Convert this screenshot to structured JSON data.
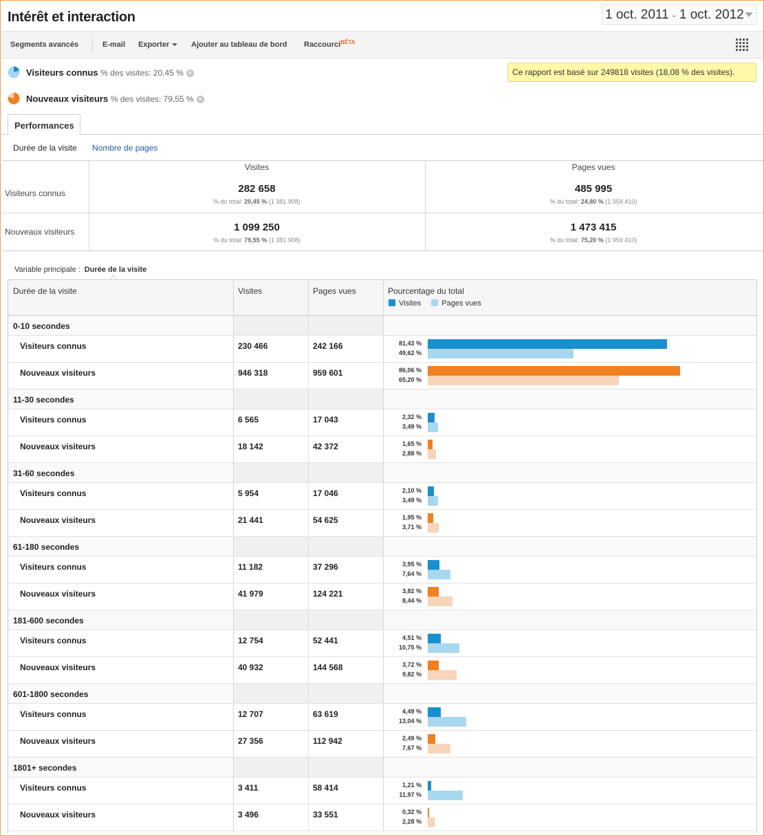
{
  "header": {
    "title": "Intérêt et interaction",
    "date_start": "1 oct. 2011",
    "date_sep": "-",
    "date_end": "1 oct. 2012"
  },
  "toolbar": {
    "segments": "Segments avancés",
    "email": "E-mail",
    "export": "Exporter",
    "dashboard": "Ajouter au tableau de bord",
    "shortcut": "Raccourci",
    "beta": "BÊTA"
  },
  "segments": [
    {
      "name": "Visiteurs connus",
      "sub": "% des visites: 20,45 %",
      "share": 0.2045,
      "color": "#1a8fd0"
    },
    {
      "name": "Nouveaux visiteurs",
      "sub": "% des visites: 79,55 %",
      "share": 0.7955,
      "color": "#f08020"
    }
  ],
  "note": "Ce rapport est basé sur 249818 visites (18,08 % des visites).",
  "tabs": {
    "performance": "Performances"
  },
  "subtabs": {
    "active": "Durée de la visite",
    "link": "Nombre de pages"
  },
  "summary": {
    "col1": "Visites",
    "col2": "Pages vues",
    "rows": [
      {
        "label": "Visiteurs connus",
        "visits": "282 658",
        "visits_pct_prefix": "% du total:",
        "visits_pct": "20,45 %",
        "visits_total": "(1 381 908)",
        "pages": "485 995",
        "pages_pct_prefix": "% du total:",
        "pages_pct": "24,80 %",
        "pages_total": "(1 959 410)"
      },
      {
        "label": "Nouveaux visiteurs",
        "visits": "1 099 250",
        "visits_pct_prefix": "% du total:",
        "visits_pct": "79,55 %",
        "visits_total": "(1 381 908)",
        "pages": "1 473 415",
        "pages_pct_prefix": "% du total:",
        "pages_pct": "75,20 %",
        "pages_total": "(1 959 410)"
      }
    ]
  },
  "primary_var": {
    "label": "Variable principale :",
    "value": "Durée de la visite"
  },
  "table": {
    "headers": {
      "dim": "Durée de la visite",
      "visits": "Visites",
      "pages": "Pages vues",
      "pct": "Pourcentage du total"
    },
    "legend": {
      "visits": "Visites",
      "pages": "Pages vues"
    },
    "colors": {
      "known_visits": "#1a8fd0",
      "known_pages": "#a8d8f0",
      "new_visits": "#f08020",
      "new_pages": "#f8d4b8"
    },
    "groups": [
      {
        "label": "0-10 secondes",
        "rows": [
          {
            "label": "Visiteurs connus",
            "type": "known",
            "visits": "230 466",
            "pages": "242 166",
            "pv": "81,43 %",
            "pp": "49,62 %",
            "v": 81.43,
            "p": 49.62
          },
          {
            "label": "Nouveaux visiteurs",
            "type": "new",
            "visits": "946 318",
            "pages": "959 601",
            "pv": "86,06 %",
            "pp": "65,20 %",
            "v": 86.06,
            "p": 65.2
          }
        ]
      },
      {
        "label": "11-30 secondes",
        "rows": [
          {
            "label": "Visiteurs connus",
            "type": "known",
            "visits": "6 565",
            "pages": "17 043",
            "pv": "2,32 %",
            "pp": "3,49 %",
            "v": 2.32,
            "p": 3.49
          },
          {
            "label": "Nouveaux visiteurs",
            "type": "new",
            "visits": "18 142",
            "pages": "42 372",
            "pv": "1,65 %",
            "pp": "2,88 %",
            "v": 1.65,
            "p": 2.88
          }
        ]
      },
      {
        "label": "31-60 secondes",
        "rows": [
          {
            "label": "Visiteurs connus",
            "type": "known",
            "visits": "5 954",
            "pages": "17 046",
            "pv": "2,10 %",
            "pp": "3,49 %",
            "v": 2.1,
            "p": 3.49
          },
          {
            "label": "Nouveaux visiteurs",
            "type": "new",
            "visits": "21 441",
            "pages": "54 625",
            "pv": "1,95 %",
            "pp": "3,71 %",
            "v": 1.95,
            "p": 3.71
          }
        ]
      },
      {
        "label": "61-180 secondes",
        "rows": [
          {
            "label": "Visiteurs connus",
            "type": "known",
            "visits": "11 182",
            "pages": "37 296",
            "pv": "3,95 %",
            "pp": "7,64 %",
            "v": 3.95,
            "p": 7.64
          },
          {
            "label": "Nouveaux visiteurs",
            "type": "new",
            "visits": "41 979",
            "pages": "124 221",
            "pv": "3,82 %",
            "pp": "8,44 %",
            "v": 3.82,
            "p": 8.44
          }
        ]
      },
      {
        "label": "181-600 secondes",
        "rows": [
          {
            "label": "Visiteurs connus",
            "type": "known",
            "visits": "12 754",
            "pages": "52 441",
            "pv": "4,51 %",
            "pp": "10,75 %",
            "v": 4.51,
            "p": 10.75
          },
          {
            "label": "Nouveaux visiteurs",
            "type": "new",
            "visits": "40 932",
            "pages": "144 568",
            "pv": "3,72 %",
            "pp": "9,82 %",
            "v": 3.72,
            "p": 9.82
          }
        ]
      },
      {
        "label": "601-1800 secondes",
        "rows": [
          {
            "label": "Visiteurs connus",
            "type": "known",
            "visits": "12 707",
            "pages": "63 619",
            "pv": "4,49 %",
            "pp": "13,04 %",
            "v": 4.49,
            "p": 13.04
          },
          {
            "label": "Nouveaux visiteurs",
            "type": "new",
            "visits": "27 356",
            "pages": "112 942",
            "pv": "2,49 %",
            "pp": "7,67 %",
            "v": 2.49,
            "p": 7.67
          }
        ]
      },
      {
        "label": "1801+ secondes",
        "rows": [
          {
            "label": "Visiteurs connus",
            "type": "known",
            "visits": "3 411",
            "pages": "58 414",
            "pv": "1,21 %",
            "pp": "11,97 %",
            "v": 1.21,
            "p": 11.97
          },
          {
            "label": "Nouveaux visiteurs",
            "type": "new",
            "visits": "3 496",
            "pages": "33 551",
            "pv": "0,32 %",
            "pp": "2,28 %",
            "v": 0.32,
            "p": 2.28
          }
        ]
      }
    ]
  }
}
